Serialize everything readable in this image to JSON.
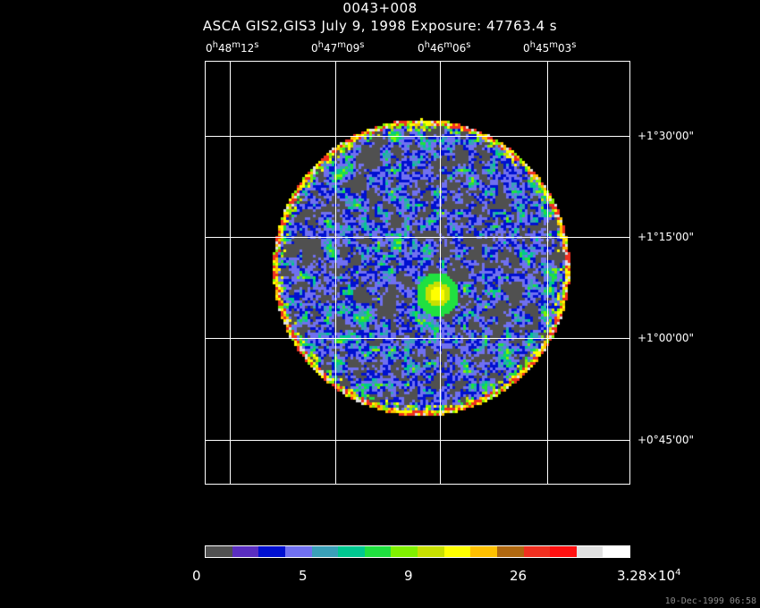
{
  "title": "0043+008",
  "subtitle": "ASCA GIS2,GIS3 July 9, 1998 Exposure: 47763.4 s",
  "ra_ticks": [
    {
      "h": "0",
      "m": "48",
      "s": "12"
    },
    {
      "h": "0",
      "m": "47",
      "s": "09"
    },
    {
      "h": "0",
      "m": "46",
      "s": "06"
    },
    {
      "h": "0",
      "m": "45",
      "s": "03"
    }
  ],
  "dec_ticks": [
    "+1°30'00\"",
    "+1°15'00\"",
    "+1°00'00\"",
    "+0°45'00\""
  ],
  "colorbar": {
    "colors": [
      "#505050",
      "#5a2ec0",
      "#0010d0",
      "#7070f0",
      "#3aa0b8",
      "#00c890",
      "#20e040",
      "#80f000",
      "#c8e000",
      "#ffff00",
      "#ffc000",
      "#b06810",
      "#f03020",
      "#ff1010",
      "#e0e0e0",
      "#ffffff"
    ],
    "labels": [
      "0",
      "5",
      "9",
      "26",
      "3.28×10"
    ],
    "label_exp": "4"
  },
  "timestamp": "10-Dec-1999 06:58"
}
